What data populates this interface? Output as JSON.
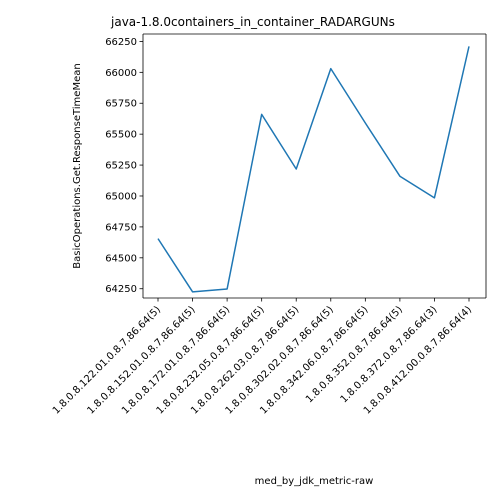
{
  "chart_data": {
    "type": "line",
    "title": "java-1.8.0containers_in_container_RADARGUNs",
    "xlabel": "med_by_jdk_metric-raw",
    "ylabel": "BasicOperations.Get.ResponseTimeMean",
    "categories": [
      "1.8.0.8.122.01.0.8.7.86.64(5)",
      "1.8.0.8.152.01.0.8.7.86.64(5)",
      "1.8.0.8.172.01.0.8.7.86.64(5)",
      "1.8.0.8.232.05.0.8.7.86.64(5)",
      "1.8.0.8.262.03.0.8.7.86.64(5)",
      "1.8.0.8.302.02.0.8.7.86.64(5)",
      "1.8.0.8.342.06.0.8.7.86.64(5)",
      "1.8.0.8.352.0.8.7.86.64(5)",
      "1.8.0.8.372.0.8.7.86.64(3)",
      "1.8.0.8.412.00.0.8.7.86.64(4)"
    ],
    "values": [
      64655,
      64225,
      64248,
      65660,
      65218,
      66030,
      65590,
      65160,
      64985,
      66210
    ],
    "yticks": [
      64250,
      64500,
      64750,
      65000,
      65250,
      65500,
      65750,
      66000,
      66250
    ],
    "ylim": [
      64175,
      66310
    ],
    "line_color": "#1f77b4",
    "grid": false,
    "legend": "none"
  }
}
